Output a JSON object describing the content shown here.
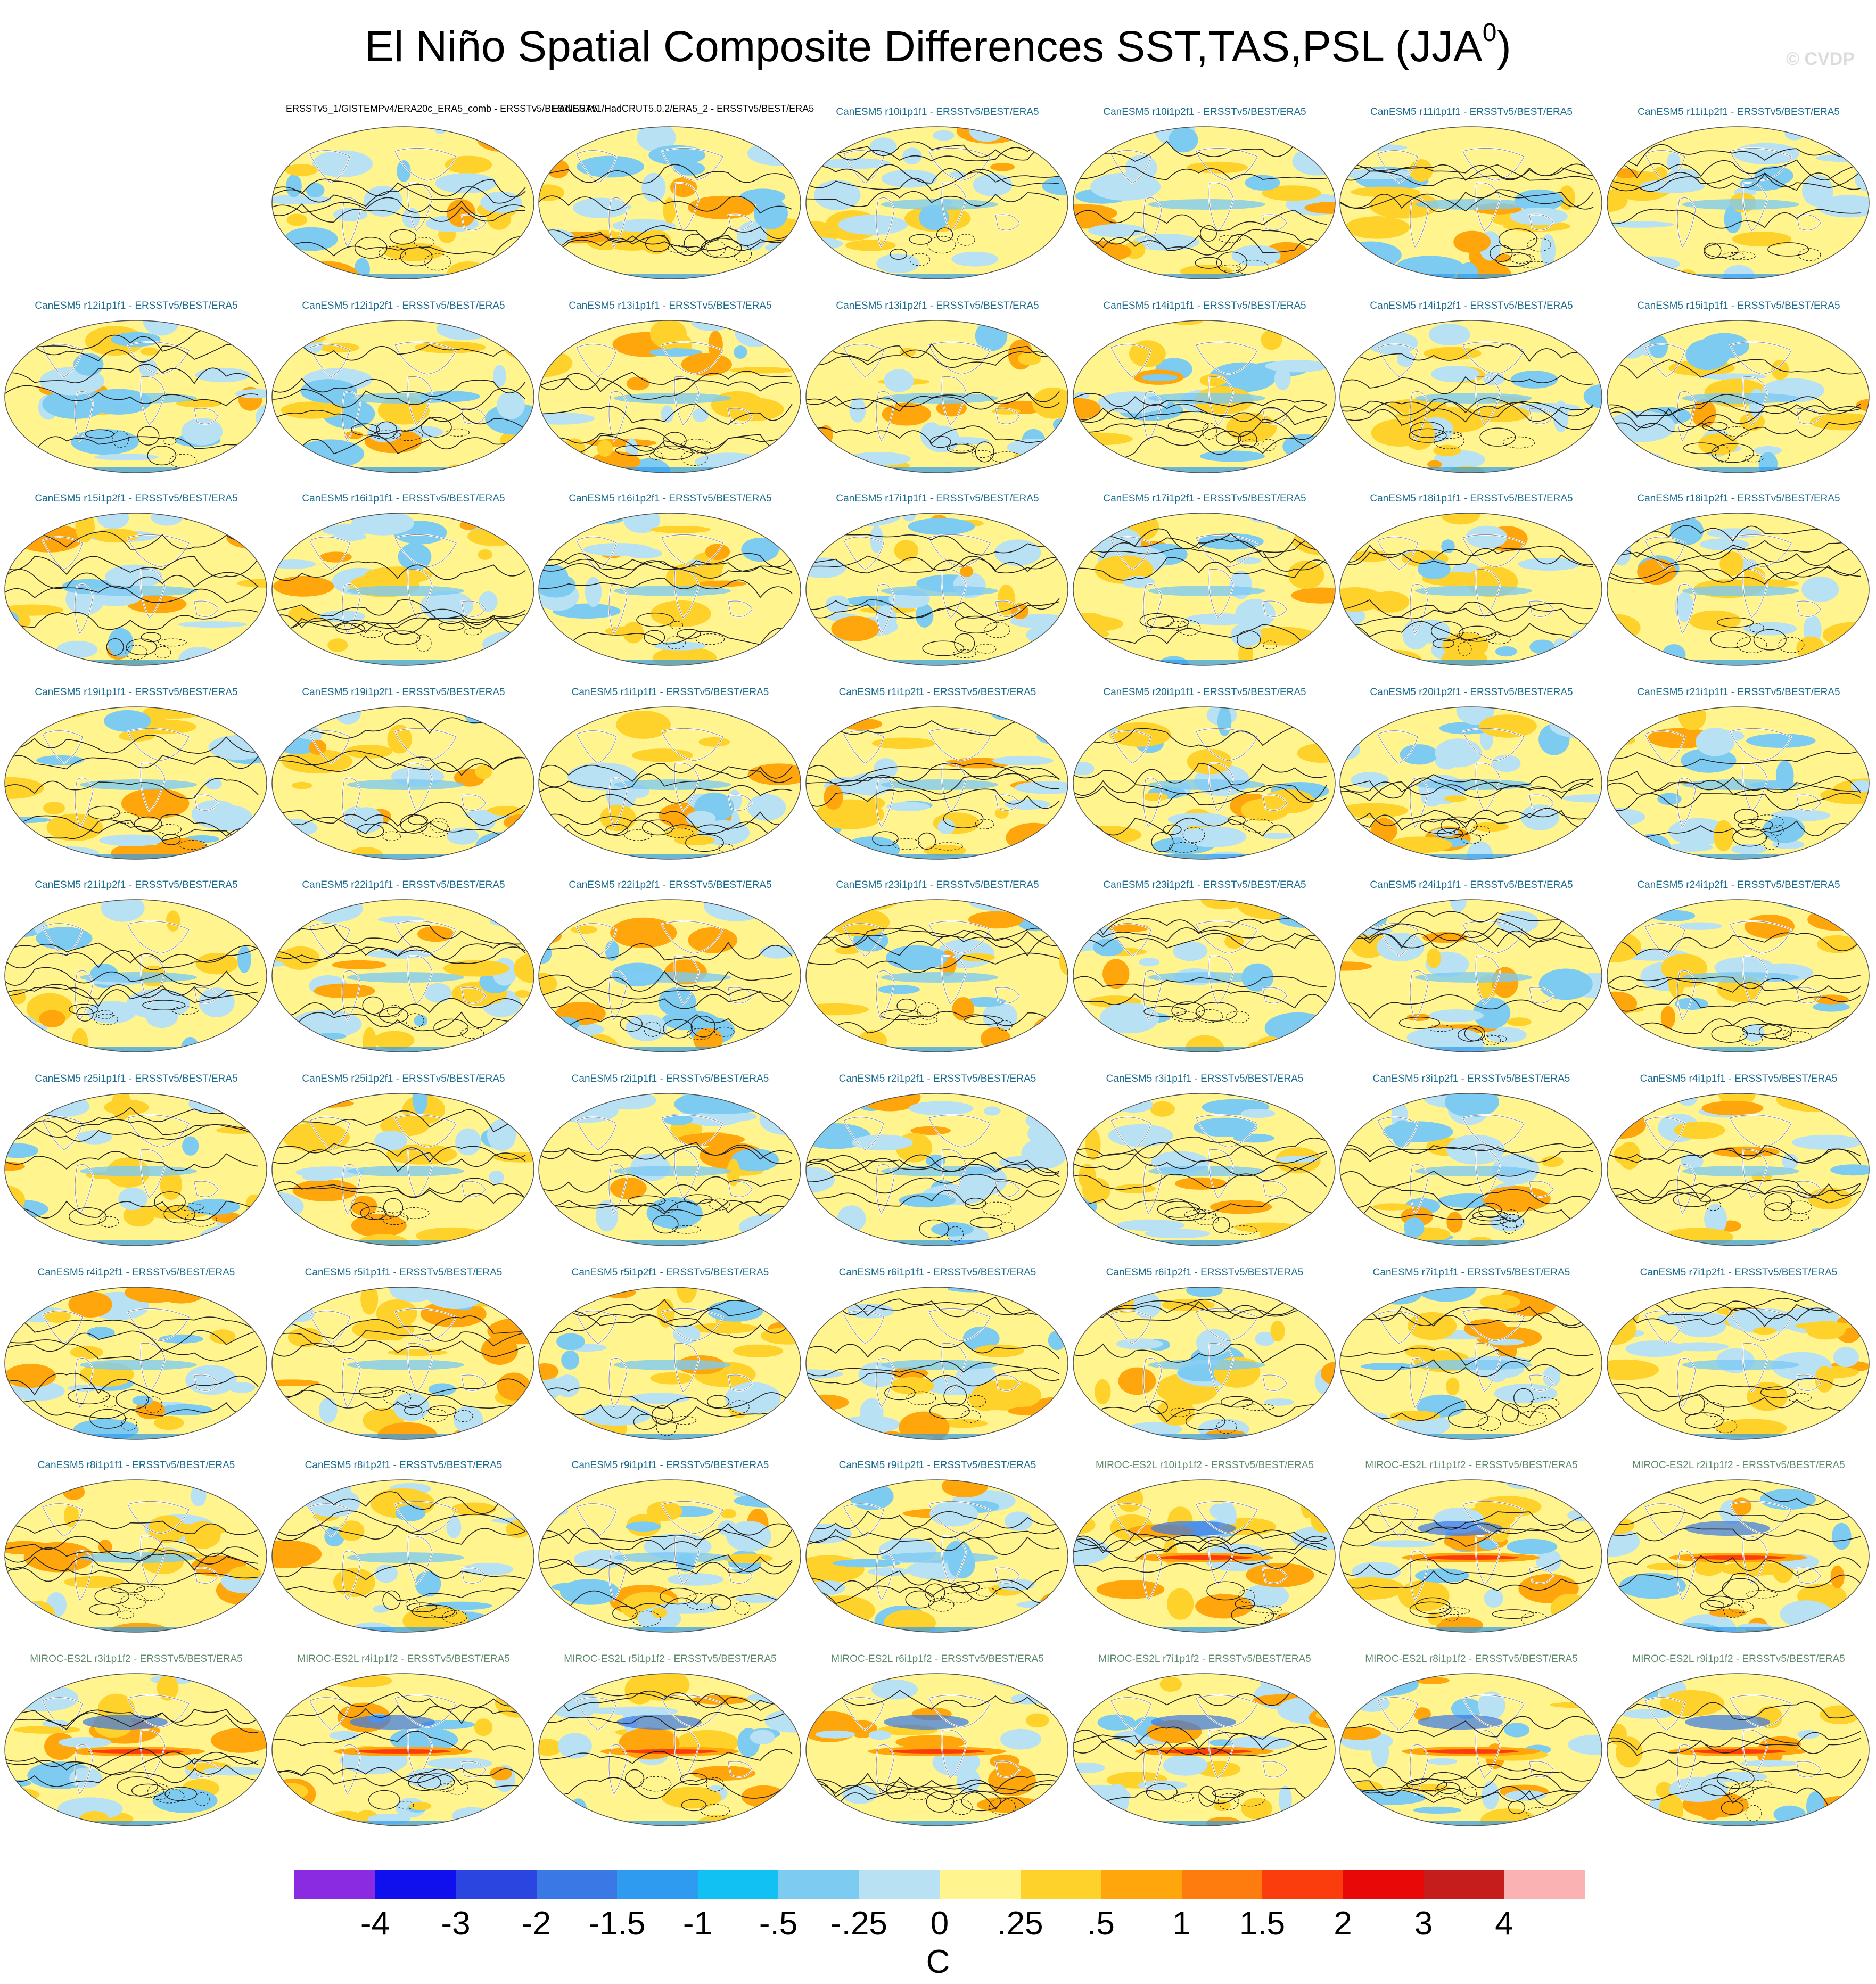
{
  "title": "El Niño Spatial Composite Differences SST,TAS,PSL (JJA",
  "title_superscript": "0",
  "title_close": ")",
  "copyright": "© CVDP",
  "colors": {
    "model_title": "#1b6c8f",
    "miroc_title": "#5f8a6c",
    "obs_title": "#000000"
  },
  "chart_data": {
    "type": "heatmap",
    "projection": "global-ellipse",
    "panels": [
      {
        "title": "ERSSTv5_1/GISTEMPv4/ERA20c_ERA5_comb - ERSSTv5/BEST/ERA5",
        "kind": "obs"
      },
      {
        "title": "HadISSTv1/HadCRUT5.0.2/ERA5_2 - ERSSTv5/BEST/ERA5",
        "kind": "obs"
      },
      {
        "title": "CanESM5 r10i1p1f1 - ERSSTv5/BEST/ERA5",
        "kind": "canesm"
      },
      {
        "title": "CanESM5 r10i1p2f1 - ERSSTv5/BEST/ERA5",
        "kind": "canesm"
      },
      {
        "title": "CanESM5 r11i1p1f1 - ERSSTv5/BEST/ERA5",
        "kind": "canesm"
      },
      {
        "title": "CanESM5 r11i1p2f1 - ERSSTv5/BEST/ERA5",
        "kind": "canesm"
      },
      {
        "title": "CanESM5 r12i1p1f1 - ERSSTv5/BEST/ERA5",
        "kind": "canesm"
      },
      {
        "title": "CanESM5 r12i1p2f1 - ERSSTv5/BEST/ERA5",
        "kind": "canesm"
      },
      {
        "title": "CanESM5 r13i1p1f1 - ERSSTv5/BEST/ERA5",
        "kind": "canesm"
      },
      {
        "title": "CanESM5 r13i1p2f1 - ERSSTv5/BEST/ERA5",
        "kind": "canesm"
      },
      {
        "title": "CanESM5 r14i1p1f1 - ERSSTv5/BEST/ERA5",
        "kind": "canesm"
      },
      {
        "title": "CanESM5 r14i1p2f1 - ERSSTv5/BEST/ERA5",
        "kind": "canesm"
      },
      {
        "title": "CanESM5 r15i1p1f1 - ERSSTv5/BEST/ERA5",
        "kind": "canesm"
      },
      {
        "title": "CanESM5 r15i1p2f1 - ERSSTv5/BEST/ERA5",
        "kind": "canesm"
      },
      {
        "title": "CanESM5 r16i1p1f1 - ERSSTv5/BEST/ERA5",
        "kind": "canesm"
      },
      {
        "title": "CanESM5 r16i1p2f1 - ERSSTv5/BEST/ERA5",
        "kind": "canesm"
      },
      {
        "title": "CanESM5 r17i1p1f1 - ERSSTv5/BEST/ERA5",
        "kind": "canesm"
      },
      {
        "title": "CanESM5 r17i1p2f1 - ERSSTv5/BEST/ERA5",
        "kind": "canesm"
      },
      {
        "title": "CanESM5 r18i1p1f1 - ERSSTv5/BEST/ERA5",
        "kind": "canesm"
      },
      {
        "title": "CanESM5 r18i1p2f1 - ERSSTv5/BEST/ERA5",
        "kind": "canesm"
      },
      {
        "title": "CanESM5 r19i1p1f1 - ERSSTv5/BEST/ERA5",
        "kind": "canesm"
      },
      {
        "title": "CanESM5 r19i1p2f1 - ERSSTv5/BEST/ERA5",
        "kind": "canesm"
      },
      {
        "title": "CanESM5 r1i1p1f1 - ERSSTv5/BEST/ERA5",
        "kind": "canesm"
      },
      {
        "title": "CanESM5 r1i1p2f1 - ERSSTv5/BEST/ERA5",
        "kind": "canesm"
      },
      {
        "title": "CanESM5 r20i1p1f1 - ERSSTv5/BEST/ERA5",
        "kind": "canesm"
      },
      {
        "title": "CanESM5 r20i1p2f1 - ERSSTv5/BEST/ERA5",
        "kind": "canesm"
      },
      {
        "title": "CanESM5 r21i1p1f1 - ERSSTv5/BEST/ERA5",
        "kind": "canesm"
      },
      {
        "title": "CanESM5 r21i1p2f1 - ERSSTv5/BEST/ERA5",
        "kind": "canesm"
      },
      {
        "title": "CanESM5 r22i1p1f1 - ERSSTv5/BEST/ERA5",
        "kind": "canesm"
      },
      {
        "title": "CanESM5 r22i1p2f1 - ERSSTv5/BEST/ERA5",
        "kind": "canesm"
      },
      {
        "title": "CanESM5 r23i1p1f1 - ERSSTv5/BEST/ERA5",
        "kind": "canesm"
      },
      {
        "title": "CanESM5 r23i1p2f1 - ERSSTv5/BEST/ERA5",
        "kind": "canesm"
      },
      {
        "title": "CanESM5 r24i1p1f1 - ERSSTv5/BEST/ERA5",
        "kind": "canesm"
      },
      {
        "title": "CanESM5 r24i1p2f1 - ERSSTv5/BEST/ERA5",
        "kind": "canesm"
      },
      {
        "title": "CanESM5 r25i1p1f1 - ERSSTv5/BEST/ERA5",
        "kind": "canesm"
      },
      {
        "title": "CanESM5 r25i1p2f1 - ERSSTv5/BEST/ERA5",
        "kind": "canesm"
      },
      {
        "title": "CanESM5 r2i1p1f1 - ERSSTv5/BEST/ERA5",
        "kind": "canesm"
      },
      {
        "title": "CanESM5 r2i1p2f1 - ERSSTv5/BEST/ERA5",
        "kind": "canesm"
      },
      {
        "title": "CanESM5 r3i1p1f1 - ERSSTv5/BEST/ERA5",
        "kind": "canesm"
      },
      {
        "title": "CanESM5 r3i1p2f1 - ERSSTv5/BEST/ERA5",
        "kind": "canesm"
      },
      {
        "title": "CanESM5 r4i1p1f1 - ERSSTv5/BEST/ERA5",
        "kind": "canesm"
      },
      {
        "title": "CanESM5 r4i1p2f1 - ERSSTv5/BEST/ERA5",
        "kind": "canesm"
      },
      {
        "title": "CanESM5 r5i1p1f1 - ERSSTv5/BEST/ERA5",
        "kind": "canesm"
      },
      {
        "title": "CanESM5 r5i1p2f1 - ERSSTv5/BEST/ERA5",
        "kind": "canesm"
      },
      {
        "title": "CanESM5 r6i1p1f1 - ERSSTv5/BEST/ERA5",
        "kind": "canesm"
      },
      {
        "title": "CanESM5 r6i1p2f1 - ERSSTv5/BEST/ERA5",
        "kind": "canesm"
      },
      {
        "title": "CanESM5 r7i1p1f1 - ERSSTv5/BEST/ERA5",
        "kind": "canesm"
      },
      {
        "title": "CanESM5 r7i1p2f1 - ERSSTv5/BEST/ERA5",
        "kind": "canesm"
      },
      {
        "title": "CanESM5 r8i1p1f1 - ERSSTv5/BEST/ERA5",
        "kind": "canesm"
      },
      {
        "title": "CanESM5 r8i1p2f1 - ERSSTv5/BEST/ERA5",
        "kind": "canesm"
      },
      {
        "title": "CanESM5 r9i1p1f1 - ERSSTv5/BEST/ERA5",
        "kind": "canesm"
      },
      {
        "title": "CanESM5 r9i1p2f1 - ERSSTv5/BEST/ERA5",
        "kind": "canesm"
      },
      {
        "title": "MIROC-ES2L r10i1p1f2 - ERSSTv5/BEST/ERA5",
        "kind": "miroc"
      },
      {
        "title": "MIROC-ES2L r1i1p1f2 - ERSSTv5/BEST/ERA5",
        "kind": "miroc"
      },
      {
        "title": "MIROC-ES2L r2i1p1f2 - ERSSTv5/BEST/ERA5",
        "kind": "miroc"
      },
      {
        "title": "MIROC-ES2L r3i1p1f2 - ERSSTv5/BEST/ERA5",
        "kind": "miroc"
      },
      {
        "title": "MIROC-ES2L r4i1p1f2 - ERSSTv5/BEST/ERA5",
        "kind": "miroc"
      },
      {
        "title": "MIROC-ES2L r5i1p1f2 - ERSSTv5/BEST/ERA5",
        "kind": "miroc"
      },
      {
        "title": "MIROC-ES2L r6i1p1f2 - ERSSTv5/BEST/ERA5",
        "kind": "miroc"
      },
      {
        "title": "MIROC-ES2L r7i1p1f2 - ERSSTv5/BEST/ERA5",
        "kind": "miroc"
      },
      {
        "title": "MIROC-ES2L r8i1p1f2 - ERSSTv5/BEST/ERA5",
        "kind": "miroc"
      },
      {
        "title": "MIROC-ES2L r9i1p1f2 - ERSSTv5/BEST/ERA5",
        "kind": "miroc"
      }
    ],
    "colorbar": {
      "labels": [
        "-4",
        "-3",
        "-2",
        "-1.5",
        "-1",
        "-.5",
        "-.25",
        "0",
        ".25",
        ".5",
        "1",
        "1.5",
        "2",
        "3",
        "4"
      ],
      "colors": [
        "#8a2be2",
        "#1010ee",
        "#2a45e0",
        "#3a78e6",
        "#2f9bf0",
        "#12c1f4",
        "#7ecbf2",
        "#b9e1f4",
        "#fff48e",
        "#fed12b",
        "#fea60b",
        "#fe7b0d",
        "#fb3c0c",
        "#e80808",
        "#c51c1c",
        "#fbb2b2"
      ],
      "units": "C"
    }
  }
}
